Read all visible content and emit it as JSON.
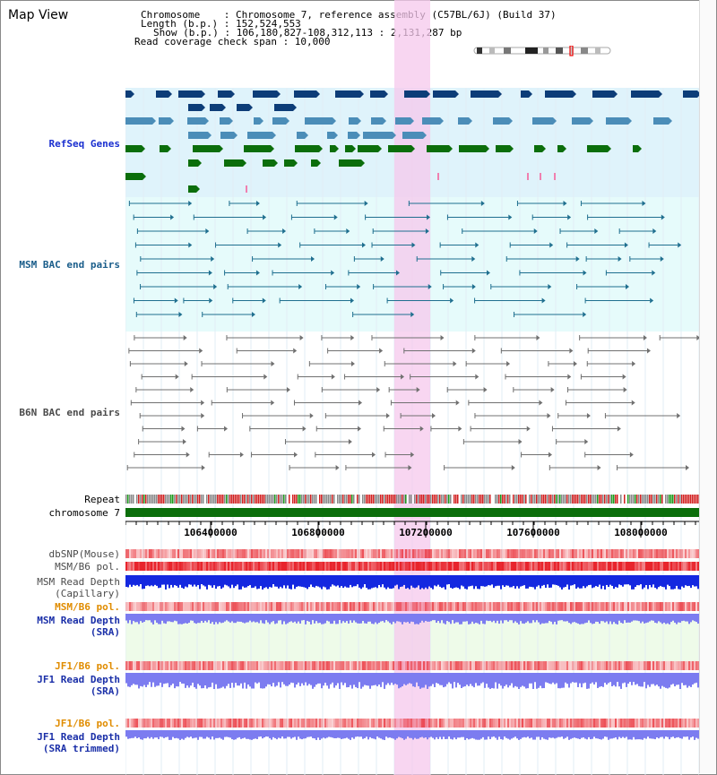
{
  "title": "Map View",
  "info": {
    "line1": "Chromosome    : Chromosome 7, reference assembly (C57BL/6J) (Build 37)",
    "line2": "Length (b.p.) : 152,524,553",
    "line3": "Show (b.p.) : 106,180,827-108,312,113 : 2,131,287 bp",
    "line4": "Read coverage check span : 10,000"
  },
  "tracks": {
    "refseq": "RefSeq Genes",
    "msm_bac": "MSM BAC end pairs",
    "b6n_bac": "B6N BAC end pairs",
    "repeat": "Repeat",
    "chromosome": "chromosome 7",
    "dbsnp": "dbSNP(Mouse)",
    "msm_b6_pol": "MSM/B6 pol.",
    "msm_depth_cap_1": "MSM Read Depth",
    "msm_depth_cap_2": "(Capillary)",
    "msm_b6_pol2": "MSM/B6 pol.",
    "msm_depth_sra_1": "MSM Read Depth",
    "msm_depth_sra_2": "(SRA)",
    "jf1_pol": "JF1/B6 pol.",
    "jf1_depth_1": "JF1 Read Depth",
    "jf1_depth_2": "(SRA)",
    "jf1_pol2": "JF1/B6 pol.",
    "jf1_trim_1": "JF1 Read Depth",
    "jf1_trim_2": "(SRA trimmed)"
  },
  "axis_ticks": [
    "106400000",
    "106800000",
    "107200000",
    "107600000",
    "108000000"
  ],
  "colors": {
    "refseq_bg": "#dff3fb",
    "msm_bg": "#e6fbfb",
    "highlight": "#f5c8ec",
    "gene_dark": "#0d3d78",
    "gene_light": "#4b8db8",
    "gene_green": "#0b6e0b",
    "msm_line": "#1f6f8f",
    "b6n_line": "#707070",
    "snp_red": "#e8242c",
    "depth_blue": "#1428e0",
    "depth_light": "#7c7cf0"
  }
}
